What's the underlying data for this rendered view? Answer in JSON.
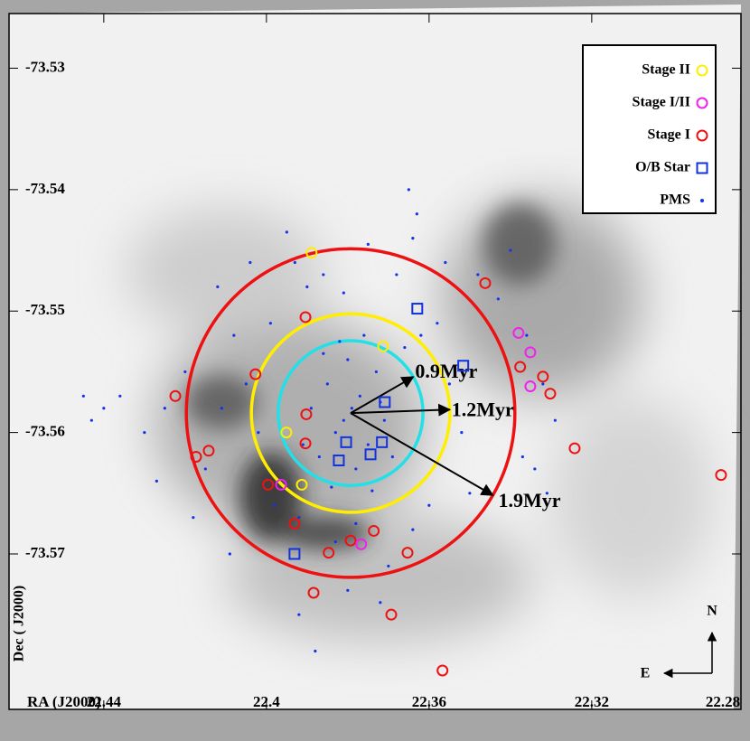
{
  "chart_data": {
    "type": "scatter",
    "xlabel": "RA (J2000)",
    "ylabel": "Dec ( J2000)",
    "xlim": [
      22.4633,
      22.2833
    ],
    "ylim": [
      -73.5255,
      -73.5828
    ],
    "xticks": [
      22.44,
      22.4,
      22.36,
      22.32,
      22.28
    ],
    "yticks": [
      -73.53,
      -73.54,
      -73.55,
      -73.56,
      -73.57
    ],
    "legend": "upper right",
    "compass": {
      "north": "N",
      "east": "E"
    },
    "ring_center": [
      22.3793,
      -73.5584
    ],
    "rings": [
      {
        "label": "0.9Myr",
        "color": "#22e0e8",
        "radius": 0.0178
      },
      {
        "label": "1.2Myr",
        "color": "#ffee00",
        "radius": 0.0244
      },
      {
        "label": "1.9Myr",
        "color": "#ee1111",
        "radius": 0.0404
      }
    ],
    "series": [
      {
        "name": "Stage II",
        "color": "#ffee00",
        "marker": "circle",
        "x": [
          22.3889,
          22.3713,
          22.3951,
          22.3913
        ],
        "values": [
          -73.5452,
          -73.5529,
          -73.56,
          -73.5643
        ]
      },
      {
        "name": "Stage I/II",
        "color": "#ee22ee",
        "marker": "circle",
        "x": [
          22.338,
          22.3351,
          22.3351,
          22.3964,
          22.3767
        ],
        "values": [
          -73.5518,
          -73.5534,
          -73.5562,
          -73.5643,
          -73.5692
        ]
      },
      {
        "name": "Stage I",
        "color": "#ee1111",
        "marker": "circle",
        "x": [
          22.3462,
          22.3904,
          22.4027,
          22.4224,
          22.3902,
          22.3904,
          22.4173,
          22.4142,
          22.3376,
          22.332,
          22.3302,
          22.3242,
          22.2882,
          22.3996,
          22.3931,
          22.3847,
          22.3793,
          22.3736,
          22.3653,
          22.3884,
          22.3693,
          22.3567
        ],
        "values": [
          -73.5477,
          -73.5505,
          -73.5552,
          -73.557,
          -73.5585,
          -73.5609,
          -73.562,
          -73.5615,
          -73.5546,
          -73.5554,
          -73.5568,
          -73.5613,
          -73.5635,
          -73.5643,
          -73.5675,
          -73.5699,
          -73.5689,
          -73.5681,
          -73.5699,
          -73.5732,
          -73.575,
          -73.5796
        ]
      },
      {
        "name": "O/B Star",
        "color": "#1133dd",
        "marker": "square",
        "x": [
          22.3629,
          22.3516,
          22.3709,
          22.3804,
          22.3716,
          22.3744,
          22.3822,
          22.3931
        ],
        "values": [
          -73.5498,
          -73.5545,
          -73.5575,
          -73.5608,
          -73.5608,
          -73.5618,
          -73.5623,
          -73.57
        ]
      },
      {
        "name": "PMS",
        "color": "#1133ee",
        "marker": "dot",
        "x": [
          22.379,
          22.381,
          22.377,
          22.383,
          22.375,
          22.385,
          22.373,
          22.387,
          22.38,
          22.378,
          22.371,
          22.389,
          22.376,
          22.382,
          22.369,
          22.391,
          22.384,
          22.374,
          22.372,
          22.386,
          22.39,
          22.386,
          22.393,
          22.381,
          22.366,
          22.362,
          22.368,
          22.358,
          22.355,
          22.352,
          22.36,
          22.364,
          22.37,
          22.383,
          22.378,
          22.392,
          22.398,
          22.402,
          22.405,
          22.408,
          22.411,
          22.415,
          22.42,
          22.425,
          22.43,
          22.436,
          22.44,
          22.443,
          22.445,
          22.412,
          22.404,
          22.399,
          22.365,
          22.363,
          22.364,
          22.348,
          22.343,
          22.34,
          22.336,
          22.332,
          22.329,
          22.334,
          22.331,
          22.337,
          22.392,
          22.38,
          22.372,
          22.388,
          22.395,
          22.375,
          22.356,
          22.418,
          22.409,
          22.427,
          22.35
        ],
        "values": [
          -73.558,
          -73.559,
          -73.557,
          -73.56,
          -73.561,
          -73.556,
          -73.555,
          -73.562,
          -73.554,
          -73.563,
          -73.559,
          -73.558,
          -73.552,
          -73.5525,
          -73.562,
          -73.561,
          -73.5645,
          -73.5648,
          -73.5575,
          -73.5535,
          -73.548,
          -73.547,
          -73.546,
          -73.5485,
          -73.553,
          -73.552,
          -73.547,
          -73.551,
          -73.556,
          -73.56,
          -73.566,
          -73.568,
          -73.571,
          -73.569,
          -73.5675,
          -73.567,
          -73.566,
          -73.56,
          -73.556,
          -73.552,
          -73.558,
          -73.563,
          -73.555,
          -73.558,
          -73.56,
          -73.557,
          -73.558,
          -73.559,
          -73.557,
          -73.548,
          -73.546,
          -73.551,
          -73.54,
          -73.542,
          -73.544,
          -73.547,
          -73.549,
          -73.545,
          -73.552,
          -73.556,
          -73.559,
          -73.563,
          -73.565,
          -73.562,
          -73.575,
          -73.573,
          -73.574,
          -73.578,
          -73.5435,
          -73.5445,
          -73.546,
          -73.567,
          -73.57,
          -73.564,
          -73.565
        ]
      }
    ]
  }
}
